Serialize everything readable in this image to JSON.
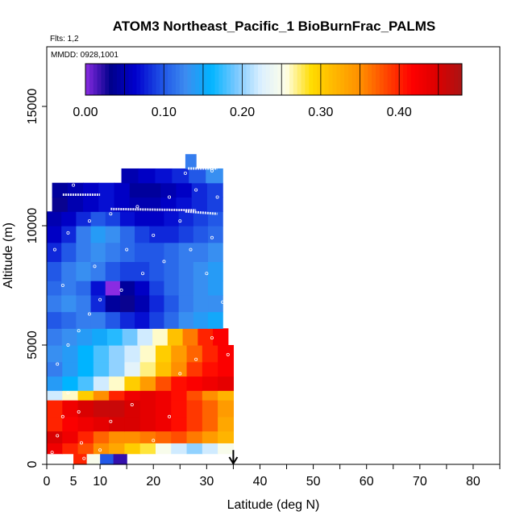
{
  "chart_data": {
    "type": "heatmap",
    "title": "ATOM3 Northeast_Pacific_1 BioBurnFrac_PALMS",
    "subtitle_flights": "Flts: 1,2",
    "subtitle_dates": "MMDD: 0928,1001",
    "xlabel": "Latitude (deg N)",
    "ylabel": "Altitude (m)",
    "xlim": [
      0,
      85
    ],
    "ylim": [
      0,
      17500
    ],
    "x_ticks": [
      0,
      5,
      10,
      20,
      30,
      40,
      50,
      60,
      70,
      80
    ],
    "y_ticks": [
      0,
      5000,
      10000,
      15000
    ],
    "colorbar": {
      "range": [
        0,
        0.48
      ],
      "tick_values": [
        0.0,
        0.1,
        0.2,
        0.3,
        0.4
      ],
      "tick_labels": [
        "0.00",
        "0.10",
        "0.20",
        "0.30",
        "0.40"
      ],
      "colors": [
        "#8a2be2",
        "#00008b",
        "#0000cd",
        "#1e50e6",
        "#3c8cf0",
        "#00b4ff",
        "#78c8ff",
        "#dcf0ff",
        "#ffffe6",
        "#ffdc00",
        "#ffb400",
        "#ff8c00",
        "#ff4500",
        "#ff0000",
        "#dc0000",
        "#aa1414"
      ]
    },
    "marker": {
      "latitude": 35,
      "direction": "down"
    },
    "bands": [
      {
        "alt": [
          0,
          450
        ],
        "lat": [
          5,
          15
        ],
        "values": [
          0.4,
          0.25,
          0.1,
          0.02
        ]
      },
      {
        "alt": [
          450,
          900
        ],
        "lat": [
          0,
          35
        ],
        "values": [
          0.43,
          0.4,
          0.38,
          0.35,
          0.33,
          0.3,
          0.28,
          0.25,
          0.22,
          0.2,
          0.22,
          0.25
        ]
      },
      {
        "alt": [
          900,
          1400
        ],
        "lat": [
          0,
          35
        ],
        "values": [
          0.45,
          0.43,
          0.4,
          0.37,
          0.35,
          0.35,
          0.36,
          0.37,
          0.38,
          0.36,
          0.34,
          0.32
        ]
      },
      {
        "alt": [
          1400,
          2000
        ],
        "lat": [
          0,
          35
        ],
        "values": [
          0.4,
          0.42,
          0.43,
          0.44,
          0.45,
          0.45,
          0.44,
          0.43,
          0.41,
          0.39,
          0.37,
          0.33
        ]
      },
      {
        "alt": [
          2000,
          2700
        ],
        "lat": [
          0,
          35
        ],
        "values": [
          0.4,
          0.43,
          0.45,
          0.46,
          0.46,
          0.45,
          0.44,
          0.43,
          0.41,
          0.39,
          0.37,
          0.34
        ]
      },
      {
        "alt": [
          2700,
          3100
        ],
        "lat": [
          0,
          35
        ],
        "values": [
          0.22,
          0.26,
          0.3,
          0.35,
          0.4,
          0.43,
          0.44,
          0.43,
          0.41,
          0.38,
          0.35,
          0.32
        ]
      },
      {
        "alt": [
          3100,
          3700
        ],
        "lat": [
          0,
          35
        ],
        "values": [
          0.14,
          0.16,
          0.18,
          0.22,
          0.26,
          0.3,
          0.34,
          0.38,
          0.41,
          0.42,
          0.43,
          0.44
        ]
      },
      {
        "alt": [
          3700,
          4300
        ],
        "lat": [
          0,
          35
        ],
        "values": [
          0.12,
          0.14,
          0.16,
          0.18,
          0.2,
          0.23,
          0.27,
          0.31,
          0.35,
          0.39,
          0.41,
          0.42
        ]
      },
      {
        "alt": [
          4300,
          5000
        ],
        "lat": [
          0,
          35
        ],
        "values": [
          0.13,
          0.14,
          0.16,
          0.18,
          0.2,
          0.22,
          0.26,
          0.3,
          0.34,
          0.37,
          0.4,
          0.42
        ]
      },
      {
        "alt": [
          5000,
          5700
        ],
        "lat": [
          0,
          34
        ],
        "values": [
          0.12,
          0.13,
          0.14,
          0.15,
          0.17,
          0.19,
          0.22,
          0.26,
          0.31,
          0.36,
          0.4,
          0.42
        ]
      },
      {
        "alt": [
          5700,
          6400
        ],
        "lat": [
          0,
          33
        ],
        "values": [
          0.1,
          0.11,
          0.12,
          0.12,
          0.1,
          0.08,
          0.07,
          0.09,
          0.11,
          0.13,
          0.14,
          0.15
        ]
      },
      {
        "alt": [
          6400,
          7100
        ],
        "lat": [
          0,
          33
        ],
        "values": [
          0.12,
          0.13,
          0.12,
          0.08,
          0.04,
          0.03,
          0.05,
          0.08,
          0.1,
          0.12,
          0.13,
          0.13
        ]
      },
      {
        "alt": [
          7100,
          7700
        ],
        "lat": [
          0,
          33
        ],
        "values": [
          0.11,
          0.12,
          0.11,
          0.07,
          0.0,
          0.04,
          0.06,
          0.09,
          0.11,
          0.12,
          0.13,
          0.14
        ]
      },
      {
        "alt": [
          7700,
          8500
        ],
        "lat": [
          0,
          33
        ],
        "values": [
          0.1,
          0.12,
          0.13,
          0.12,
          0.1,
          0.09,
          0.09,
          0.1,
          0.11,
          0.12,
          0.13,
          0.14
        ]
      },
      {
        "alt": [
          8500,
          9300
        ],
        "lat": [
          0,
          33
        ],
        "values": [
          0.08,
          0.1,
          0.12,
          0.13,
          0.12,
          0.11,
          0.1,
          0.1,
          0.11,
          0.12,
          0.12,
          0.13
        ]
      },
      {
        "alt": [
          9300,
          10000
        ],
        "lat": [
          0,
          33
        ],
        "values": [
          0.06,
          0.08,
          0.12,
          0.14,
          0.13,
          0.11,
          0.09,
          0.08,
          0.08,
          0.09,
          0.1,
          0.11
        ]
      },
      {
        "alt": [
          10000,
          10600
        ],
        "lat": [
          0,
          33
        ],
        "values": [
          0.05,
          0.06,
          0.08,
          0.1,
          0.09,
          0.07,
          0.06,
          0.06,
          0.07,
          0.08,
          0.09,
          0.1
        ]
      },
      {
        "alt": [
          10600,
          11200
        ],
        "lat": [
          1,
          33
        ],
        "values": [
          0.03,
          0.05,
          0.06,
          0.07,
          0.06,
          0.05,
          0.05,
          0.06,
          0.07,
          0.08,
          0.09
        ]
      },
      {
        "alt": [
          11200,
          11800
        ],
        "lat": [
          1,
          33
        ],
        "values": [
          0.04,
          0.05,
          0.06,
          0.07,
          0.06,
          0.04,
          0.04,
          0.05,
          0.06,
          0.08,
          0.09
        ]
      },
      {
        "alt": [
          11800,
          12400
        ],
        "lat": [
          14,
          33
        ],
        "values": [
          0.05,
          0.06,
          0.07,
          0.08,
          0.1,
          0.13
        ]
      },
      {
        "alt": [
          12400,
          13000
        ],
        "lat": [
          26,
          28
        ],
        "values": [
          0.12
        ]
      }
    ],
    "flight_track_segments": [
      {
        "lat": [
          1.5,
          4
        ],
        "alt": [
          12000,
          12000
        ]
      },
      {
        "lat": [
          3,
          10
        ],
        "alt": [
          11300,
          11300
        ]
      },
      {
        "lat": [
          12,
          28
        ],
        "alt": [
          10700,
          10650
        ]
      },
      {
        "lat": [
          26,
          32
        ],
        "alt": [
          10600,
          10500
        ]
      },
      {
        "lat": [
          26.5,
          32
        ],
        "alt": [
          12400,
          12400
        ]
      }
    ],
    "sample_points": [
      [
        1,
        500
      ],
      [
        2,
        1200
      ],
      [
        3,
        2000
      ],
      [
        4,
        3000
      ],
      [
        6,
        2200
      ],
      [
        6.5,
        900
      ],
      [
        7,
        250
      ],
      [
        10,
        600
      ],
      [
        12,
        1800
      ],
      [
        16,
        2500
      ],
      [
        20,
        1000
      ],
      [
        23,
        2000
      ],
      [
        25,
        3800
      ],
      [
        28,
        4400
      ],
      [
        31,
        5300
      ],
      [
        34,
        4600
      ],
      [
        2,
        4200
      ],
      [
        4,
        5000
      ],
      [
        6,
        5600
      ],
      [
        8,
        6300
      ],
      [
        10,
        6900
      ],
      [
        14,
        7300
      ],
      [
        18,
        8000
      ],
      [
        22,
        8500
      ],
      [
        27,
        9000
      ],
      [
        31,
        9500
      ],
      [
        1.5,
        9000
      ],
      [
        4,
        9700
      ],
      [
        8,
        10200
      ],
      [
        12,
        10500
      ],
      [
        17,
        10800
      ],
      [
        23,
        11200
      ],
      [
        28,
        11500
      ],
      [
        32,
        11200
      ],
      [
        3,
        7500
      ],
      [
        9,
        8300
      ],
      [
        15,
        9000
      ],
      [
        20,
        9600
      ],
      [
        25,
        10200
      ],
      [
        30,
        8000
      ],
      [
        33,
        6800
      ],
      [
        5,
        11700
      ],
      [
        10,
        12000
      ],
      [
        26,
        12200
      ],
      [
        31,
        12300
      ]
    ]
  }
}
